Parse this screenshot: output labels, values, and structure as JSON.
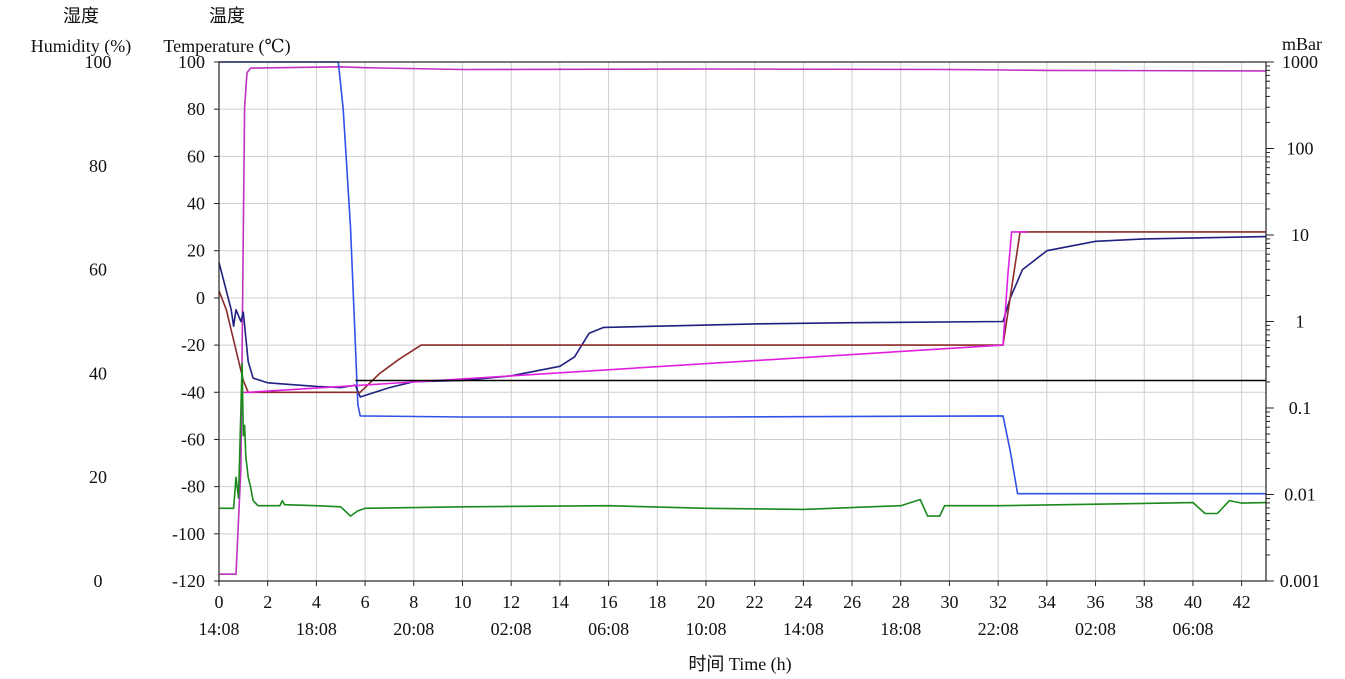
{
  "chart_data": {
    "type": "line",
    "axis_titles": {
      "humidity_cn": "湿度",
      "humidity_en": "Humidity (%)",
      "temperature_cn": "温度",
      "temperature_en": "Temperature (℃)",
      "pressure_unit": "mBar",
      "x_title": "时间 Time (h)"
    },
    "x_range": [
      0,
      43
    ],
    "x_ticks": [
      0,
      2,
      4,
      6,
      8,
      10,
      12,
      14,
      16,
      18,
      20,
      22,
      24,
      26,
      28,
      30,
      32,
      34,
      36,
      38,
      40,
      42
    ],
    "x_tick_labels": [
      "0",
      "2",
      "4",
      "6",
      "8",
      "10",
      "12",
      "14",
      "16",
      "18",
      "20",
      "22",
      "24",
      "26",
      "28",
      "30",
      "32",
      "34",
      "36",
      "38",
      "40",
      "42"
    ],
    "time_labels": [
      "14:08",
      "18:08",
      "20:08",
      "02:08",
      "06:08",
      "10:08",
      "14:08",
      "18:08",
      "22:08",
      "02:08",
      "06:08"
    ],
    "humidity_axis": {
      "range": [
        0,
        100
      ],
      "ticks": [
        0,
        20,
        40,
        60,
        80,
        100
      ],
      "tick_labels": [
        "0",
        "20",
        "40",
        "60",
        "80",
        "100"
      ]
    },
    "temperature_axis": {
      "range": [
        -120,
        100
      ],
      "ticks": [
        -120,
        -100,
        -80,
        -60,
        -40,
        -20,
        0,
        20,
        40,
        60,
        80,
        100
      ],
      "tick_labels": [
        "-120",
        "-100",
        "-80",
        "-60",
        "-40",
        "-20",
        "0",
        "20",
        "40",
        "60",
        "80",
        "100"
      ]
    },
    "pressure_axis": {
      "scale": "log",
      "range": [
        0.001,
        1000
      ],
      "ticks": [
        0.001,
        0.01,
        0.1,
        1,
        10,
        100,
        1000
      ],
      "tick_labels": [
        "0.001",
        "0.01",
        "0.1",
        "1",
        "10",
        "100",
        "1000"
      ]
    },
    "grid": true,
    "series": [
      {
        "color": "#c030c0",
        "axis": "pressure",
        "points": [
          [
            0,
            0.0012
          ],
          [
            0.7,
            0.0012
          ],
          [
            0.9,
            0.02
          ],
          [
            1.05,
            300
          ],
          [
            1.15,
            750
          ],
          [
            1.3,
            850
          ],
          [
            5,
            880
          ],
          [
            6,
            860
          ],
          [
            10,
            820
          ],
          [
            20,
            830
          ],
          [
            30,
            820
          ],
          [
            34,
            800
          ],
          [
            43,
            790
          ]
        ]
      },
      {
        "color": "#3050e8",
        "axis": "temperature",
        "points": [
          [
            0,
            100
          ],
          [
            4.9,
            100
          ],
          [
            5.1,
            80
          ],
          [
            5.4,
            30
          ],
          [
            5.6,
            -20
          ],
          [
            5.7,
            -45
          ],
          [
            5.8,
            -50
          ],
          [
            10,
            -50.5
          ],
          [
            20,
            -50.5
          ],
          [
            32.2,
            -50
          ],
          [
            32.5,
            -65
          ],
          [
            32.8,
            -83
          ],
          [
            43,
            -83
          ]
        ]
      },
      {
        "color": "#202080",
        "axis": "temperature",
        "points": [
          [
            0,
            15
          ],
          [
            0.5,
            -5
          ],
          [
            0.6,
            -12
          ],
          [
            0.7,
            -5
          ],
          [
            0.9,
            -10
          ],
          [
            1.0,
            -6
          ],
          [
            1.2,
            -27
          ],
          [
            1.4,
            -34
          ],
          [
            2,
            -36
          ],
          [
            4,
            -37.5
          ],
          [
            5.0,
            -38
          ],
          [
            5.6,
            -37
          ],
          [
            5.8,
            -42
          ],
          [
            7,
            -38
          ],
          [
            8,
            -35.5
          ],
          [
            10,
            -35
          ],
          [
            12,
            -33
          ],
          [
            14,
            -29
          ],
          [
            14.6,
            -25
          ],
          [
            15.2,
            -15
          ],
          [
            15.8,
            -12.5
          ],
          [
            18,
            -12
          ],
          [
            22,
            -11
          ],
          [
            26,
            -10.5
          ],
          [
            32.2,
            -10
          ],
          [
            32.5,
            0
          ],
          [
            33,
            12
          ],
          [
            34,
            20
          ],
          [
            36,
            24
          ],
          [
            38,
            25
          ],
          [
            43,
            26
          ]
        ]
      },
      {
        "color": "#8b2a2a",
        "axis": "temperature",
        "points": [
          [
            0,
            3
          ],
          [
            0.3,
            -5
          ],
          [
            1.0,
            -35
          ],
          [
            1.2,
            -40
          ],
          [
            5.8,
            -40
          ],
          [
            6.6,
            -32
          ],
          [
            7.4,
            -26
          ],
          [
            8.3,
            -20
          ],
          [
            32.2,
            -20
          ],
          [
            32.9,
            28
          ],
          [
            43,
            28
          ]
        ]
      },
      {
        "color": "#e020e0",
        "axis": "temperature",
        "points": [
          [
            1.0,
            -40
          ],
          [
            1.2,
            -40
          ],
          [
            32.2,
            -20
          ],
          [
            32.4,
            10
          ],
          [
            32.55,
            28
          ],
          [
            33.2,
            28
          ]
        ]
      },
      {
        "color": "#000000",
        "axis": "temperature",
        "points": [
          [
            5.6,
            -35
          ],
          [
            43,
            -35
          ]
        ]
      },
      {
        "color": "#1a8a1a",
        "axis": "humidity",
        "points": [
          [
            0,
            14
          ],
          [
            0.6,
            14
          ],
          [
            0.7,
            20
          ],
          [
            0.8,
            16
          ],
          [
            0.9,
            33
          ],
          [
            0.95,
            42
          ],
          [
            1.0,
            28
          ],
          [
            1.05,
            30
          ],
          [
            1.1,
            24
          ],
          [
            1.2,
            20
          ],
          [
            1.3,
            18
          ],
          [
            1.4,
            15.5
          ],
          [
            1.6,
            14.5
          ],
          [
            2.5,
            14.5
          ],
          [
            2.6,
            15.5
          ],
          [
            2.7,
            14.7
          ],
          [
            4,
            14.5
          ],
          [
            5,
            14.3
          ],
          [
            5.4,
            12.5
          ],
          [
            5.7,
            13.5
          ],
          [
            6,
            14
          ],
          [
            10,
            14.3
          ],
          [
            16,
            14.5
          ],
          [
            20,
            14
          ],
          [
            24,
            13.8
          ],
          [
            28,
            14.5
          ],
          [
            28.8,
            15.7
          ],
          [
            29.1,
            12.5
          ],
          [
            29.6,
            12.5
          ],
          [
            29.8,
            14.5
          ],
          [
            32,
            14.5
          ],
          [
            36,
            14.8
          ],
          [
            40,
            15.1
          ],
          [
            40.5,
            13
          ],
          [
            41,
            13
          ],
          [
            41.5,
            15.5
          ],
          [
            42,
            15
          ],
          [
            43,
            15.1
          ]
        ]
      }
    ]
  }
}
